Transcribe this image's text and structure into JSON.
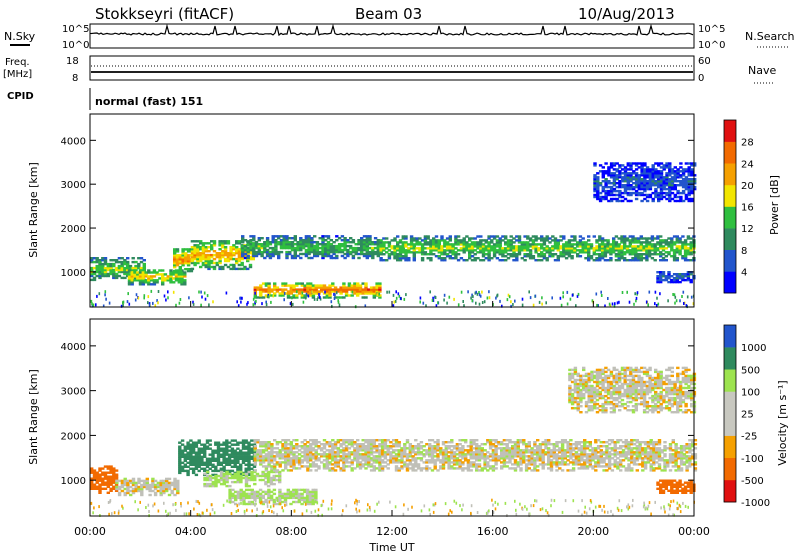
{
  "header": {
    "station": "Stokkseyri (fitACF)",
    "beam": "Beam 03",
    "date": "10/Aug/2013"
  },
  "panels": {
    "nsky": {
      "label": "N.Sky",
      "left_ticks": [
        "10^5",
        "10^0"
      ],
      "right_ticks": [
        "10^5",
        "10^0"
      ],
      "right_label": "N.Search"
    },
    "freq": {
      "label_line1": "Freq.",
      "label_line2": "[MHz]",
      "left_ticks": [
        "18",
        "8"
      ],
      "right_ticks": [
        "60",
        "0"
      ],
      "right_label": "Nave"
    },
    "cpid": {
      "label": "CPID",
      "value": "normal (fast) 151"
    }
  },
  "colors": {
    "power": [
      "#0000ff",
      "#2255cc",
      "#2f8a5e",
      "#2fbf3f",
      "#f2e500",
      "#f5a000",
      "#f26a00",
      "#e01010"
    ],
    "velocity": [
      "#e01010",
      "#f26a00",
      "#f5a000",
      "#c8c8c0",
      "#c8c8c0",
      "#9de34f",
      "#2f8a5e",
      "#2255cc"
    ],
    "ground_scatter": "#c0c0b8"
  },
  "chart_data": [
    {
      "type": "heatmap",
      "ylabel": "Slant Range [km]",
      "y_ticks": [
        "1000",
        "2000",
        "3000",
        "4000"
      ],
      "ylim": [
        200,
        4600
      ],
      "xlim": [
        "00:00",
        "24:00"
      ],
      "colorbar": {
        "label": "Power [dB]",
        "ticks": [
          "4",
          "8",
          "12",
          "16",
          "20",
          "24",
          "28"
        ],
        "range": [
          0,
          32
        ]
      },
      "bands": [
        {
          "t": [
            0.0,
            2.2
          ],
          "range": [
            800,
            1300
          ],
          "level": 16
        },
        {
          "t": [
            1.5,
            3.8
          ],
          "range": [
            700,
            1050
          ],
          "level": 20
        },
        {
          "t": [
            3.3,
            4.0
          ],
          "range": [
            1000,
            1500
          ],
          "level": 24
        },
        {
          "t": [
            4.0,
            6.5
          ],
          "range": [
            1050,
            1700
          ],
          "level": 22
        },
        {
          "t": [
            6.5,
            11.5
          ],
          "range": [
            400,
            750
          ],
          "level": 26
        },
        {
          "t": [
            6.0,
            11.5
          ],
          "range": [
            1300,
            1800
          ],
          "level": 14
        },
        {
          "t": [
            11.5,
            24.0
          ],
          "range": [
            1250,
            1800
          ],
          "level": 16
        },
        {
          "t": [
            20.0,
            24.0
          ],
          "range": [
            2600,
            3500
          ],
          "level": 6
        },
        {
          "t": [
            22.5,
            24.0
          ],
          "range": [
            750,
            1000
          ],
          "level": 8
        }
      ]
    },
    {
      "type": "heatmap",
      "xlabel": "Time UT",
      "ylabel": "Slant Range [km]",
      "y_ticks": [
        "1000",
        "2000",
        "3000",
        "4000"
      ],
      "x_ticks": [
        "00:00",
        "04:00",
        "08:00",
        "12:00",
        "16:00",
        "20:00",
        "00:00"
      ],
      "ylim": [
        200,
        4600
      ],
      "xlim": [
        "00:00",
        "24:00"
      ],
      "colorbar": {
        "label": "Velocity [m s⁻¹]",
        "ticks": [
          "1000",
          "500",
          "100",
          "25",
          "-25",
          "-100",
          "-500",
          "-1000"
        ],
        "range": [
          -1000,
          1000
        ]
      },
      "bands": [
        {
          "t": [
            0.0,
            1.0
          ],
          "range": [
            700,
            1300
          ],
          "level": -400
        },
        {
          "t": [
            1.0,
            3.5
          ],
          "range": [
            650,
            1050
          ],
          "level": 0
        },
        {
          "t": [
            3.5,
            6.5
          ],
          "range": [
            1100,
            1900
          ],
          "level": 400
        },
        {
          "t": [
            4.5,
            7.5
          ],
          "range": [
            850,
            1200
          ],
          "level": 80
        },
        {
          "t": [
            5.5,
            9.0
          ],
          "range": [
            450,
            800
          ],
          "level": 60
        },
        {
          "t": [
            6.5,
            24.0
          ],
          "range": [
            1200,
            1900
          ],
          "level": 0
        },
        {
          "t": [
            19.0,
            24.0
          ],
          "range": [
            2500,
            3500
          ],
          "level": 0
        },
        {
          "t": [
            22.5,
            24.0
          ],
          "range": [
            700,
            1000
          ],
          "level": -300
        }
      ]
    }
  ]
}
